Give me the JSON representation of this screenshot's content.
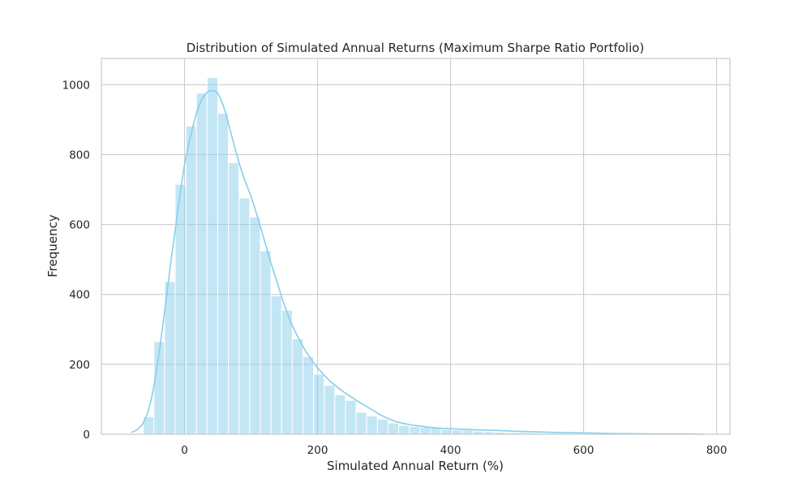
{
  "chart_data": {
    "type": "bar",
    "subtype": "histogram-with-kde",
    "title": "Distribution of Simulated Annual Returns (Maximum Sharpe Ratio Portfolio)",
    "xlabel": "Simulated Annual Return (%)",
    "ylabel": "Frequency",
    "xlim": [
      -125,
      820
    ],
    "ylim": [
      0,
      1075
    ],
    "xticks": [
      0,
      200,
      400,
      600,
      800
    ],
    "yticks": [
      0,
      200,
      400,
      600,
      800,
      1000
    ],
    "grid": true,
    "bar_color": "#87ceeb",
    "bar_opacity": 0.5,
    "kde_color": "#87ceeb",
    "bin_edges": [
      -62,
      -46,
      -30,
      -14,
      2,
      18,
      34,
      50,
      66,
      82,
      98,
      114,
      130,
      146,
      162,
      178,
      194,
      210,
      226,
      242,
      258,
      274,
      290,
      306,
      322,
      338,
      354,
      370,
      386,
      402,
      418,
      434,
      450,
      466,
      482,
      498,
      514,
      530,
      546,
      562,
      578,
      594,
      610,
      626,
      642,
      658,
      674,
      690,
      706,
      722,
      738,
      754,
      770,
      786
    ],
    "counts": [
      50,
      265,
      437,
      715,
      882,
      976,
      1020,
      918,
      777,
      676,
      622,
      525,
      396,
      355,
      273,
      222,
      172,
      140,
      113,
      97,
      63,
      52,
      43,
      32,
      25,
      22,
      20,
      18,
      14,
      12,
      12,
      9,
      7,
      6,
      5,
      5,
      4,
      3,
      3,
      3,
      2,
      2,
      2,
      2,
      2,
      1,
      1,
      1,
      1,
      1,
      1,
      1,
      1
    ],
    "kde": {
      "x": [
        -80,
        -70,
        -60,
        -50,
        -40,
        -30,
        -20,
        -10,
        0,
        10,
        20,
        30,
        40,
        50,
        60,
        70,
        80,
        90,
        100,
        110,
        120,
        130,
        140,
        150,
        160,
        170,
        180,
        190,
        200,
        220,
        240,
        260,
        280,
        300,
        320,
        340,
        360,
        380,
        400,
        420,
        450,
        480,
        520,
        560,
        600,
        650,
        700,
        750,
        780
      ],
      "y": [
        5,
        15,
        40,
        100,
        210,
        350,
        500,
        640,
        770,
        860,
        930,
        970,
        983,
        975,
        930,
        860,
        790,
        730,
        680,
        620,
        555,
        490,
        430,
        370,
        320,
        280,
        245,
        215,
        190,
        150,
        120,
        95,
        72,
        50,
        35,
        27,
        22,
        18,
        16,
        14,
        12,
        10,
        7,
        5,
        4,
        2,
        1,
        1,
        0
      ]
    }
  }
}
